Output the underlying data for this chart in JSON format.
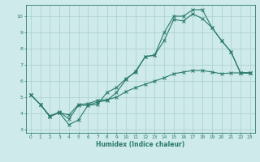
{
  "xlabel": "Humidex (Indice chaleur)",
  "background_color": "#ceeaea",
  "grid_color": "#aacece",
  "line_color": "#2a7a6a",
  "xlim": [
    -0.5,
    23.5
  ],
  "ylim": [
    2.8,
    10.7
  ],
  "xticks": [
    0,
    1,
    2,
    3,
    4,
    5,
    6,
    7,
    8,
    9,
    10,
    11,
    12,
    13,
    14,
    15,
    16,
    17,
    18,
    19,
    20,
    21,
    22,
    23
  ],
  "yticks": [
    3,
    4,
    5,
    6,
    7,
    8,
    9,
    10
  ],
  "series1_x": [
    0,
    1,
    2,
    3,
    4,
    5,
    6,
    7,
    8,
    9,
    10,
    11,
    12,
    13,
    14,
    15,
    16,
    17,
    18,
    19,
    20,
    21,
    22,
    23
  ],
  "series1_y": [
    5.15,
    4.55,
    3.8,
    4.05,
    3.3,
    3.6,
    4.5,
    4.7,
    4.8,
    5.3,
    6.1,
    6.6,
    7.5,
    7.6,
    9.0,
    10.0,
    10.0,
    10.4,
    10.4,
    9.3,
    8.5,
    7.8,
    6.5,
    6.5
  ],
  "series2_x": [
    0,
    1,
    2,
    3,
    4,
    5,
    6,
    7,
    8,
    9,
    10,
    11,
    12,
    13,
    14,
    15,
    16,
    17,
    18,
    19,
    20,
    21,
    22,
    23
  ],
  "series2_y": [
    5.15,
    4.55,
    3.8,
    4.1,
    3.65,
    4.5,
    4.5,
    4.55,
    5.3,
    5.6,
    6.15,
    6.55,
    7.5,
    7.6,
    8.5,
    9.8,
    9.7,
    10.15,
    9.85,
    9.3,
    8.5,
    7.8,
    6.5,
    6.5
  ],
  "series3_x": [
    0,
    1,
    2,
    3,
    4,
    5,
    6,
    7,
    8,
    9,
    10,
    11,
    12,
    13,
    14,
    15,
    16,
    17,
    18,
    19,
    20,
    21,
    22,
    23
  ],
  "series3_y": [
    5.15,
    4.55,
    3.85,
    4.05,
    3.9,
    4.55,
    4.6,
    4.8,
    4.85,
    5.0,
    5.35,
    5.6,
    5.8,
    6.0,
    6.2,
    6.45,
    6.55,
    6.65,
    6.65,
    6.55,
    6.45,
    6.5,
    6.5,
    6.5
  ]
}
